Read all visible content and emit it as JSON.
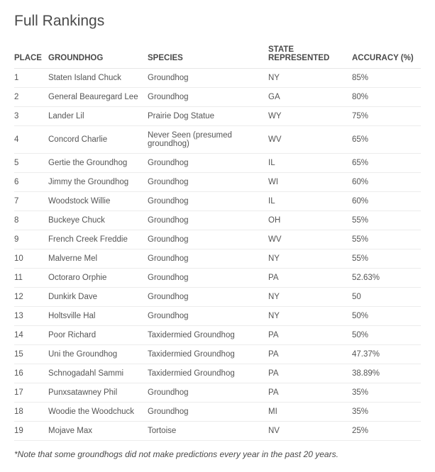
{
  "title": "Full Rankings",
  "columns": [
    "PLACE",
    "GROUNDHOG",
    "SPECIES",
    "STATE REPRESENTED",
    "ACCURACY (%)"
  ],
  "rows": [
    {
      "place": "1",
      "groundhog": "Staten Island Chuck",
      "species": "Groundhog",
      "state": "NY",
      "accuracy": "85%"
    },
    {
      "place": "2",
      "groundhog": "General Beauregard Lee",
      "species": "Groundhog",
      "state": "GA",
      "accuracy": "80%"
    },
    {
      "place": "3",
      "groundhog": "Lander Lil",
      "species": "Prairie Dog Statue",
      "state": "WY",
      "accuracy": "75%"
    },
    {
      "place": "4",
      "groundhog": "Concord Charlie",
      "species": "Never Seen (presumed groundhog)",
      "state": "WV",
      "accuracy": "65%"
    },
    {
      "place": "5",
      "groundhog": "Gertie the Groundhog",
      "species": "Groundhog",
      "state": "IL",
      "accuracy": "65%"
    },
    {
      "place": "6",
      "groundhog": "Jimmy the Groundhog",
      "species": "Groundhog",
      "state": "WI",
      "accuracy": "60%"
    },
    {
      "place": "7",
      "groundhog": "Woodstock Willie",
      "species": "Groundhog",
      "state": "IL",
      "accuracy": "60%"
    },
    {
      "place": "8",
      "groundhog": "Buckeye Chuck",
      "species": "Groundhog",
      "state": "OH",
      "accuracy": "55%"
    },
    {
      "place": "9",
      "groundhog": "French Creek Freddie",
      "species": "Groundhog",
      "state": "WV",
      "accuracy": "55%"
    },
    {
      "place": "10",
      "groundhog": "Malverne Mel",
      "species": "Groundhog",
      "state": "NY",
      "accuracy": "55%"
    },
    {
      "place": "11",
      "groundhog": "Octoraro Orphie",
      "species": "Groundhog",
      "state": "PA",
      "accuracy": "52.63%"
    },
    {
      "place": "12",
      "groundhog": "Dunkirk Dave",
      "species": "Groundhog",
      "state": "NY",
      "accuracy": "50"
    },
    {
      "place": "13",
      "groundhog": "Holtsville Hal",
      "species": "Groundhog",
      "state": "NY",
      "accuracy": "50%"
    },
    {
      "place": "14",
      "groundhog": "Poor Richard",
      "species": "Taxidermied Groundhog",
      "state": "PA",
      "accuracy": "50%"
    },
    {
      "place": "15",
      "groundhog": "Uni the Groundhog",
      "species": "Taxidermied Groundhog",
      "state": "PA",
      "accuracy": "47.37%"
    },
    {
      "place": "16",
      "groundhog": "Schnogadahl Sammi",
      "species": "Taxidermied Groundhog",
      "state": "PA",
      "accuracy": "38.89%"
    },
    {
      "place": "17",
      "groundhog": "Punxsatawney Phil",
      "species": "Groundhog",
      "state": "PA",
      "accuracy": "35%"
    },
    {
      "place": "18",
      "groundhog": "Woodie the Woodchuck",
      "species": "Groundhog",
      "state": "MI",
      "accuracy": "35%"
    },
    {
      "place": "19",
      "groundhog": "Mojave Max",
      "species": "Tortoise",
      "state": "NV",
      "accuracy": "25%"
    }
  ],
  "footnote": "*Note that some groundhogs did not make predictions every year in the past 20 years."
}
